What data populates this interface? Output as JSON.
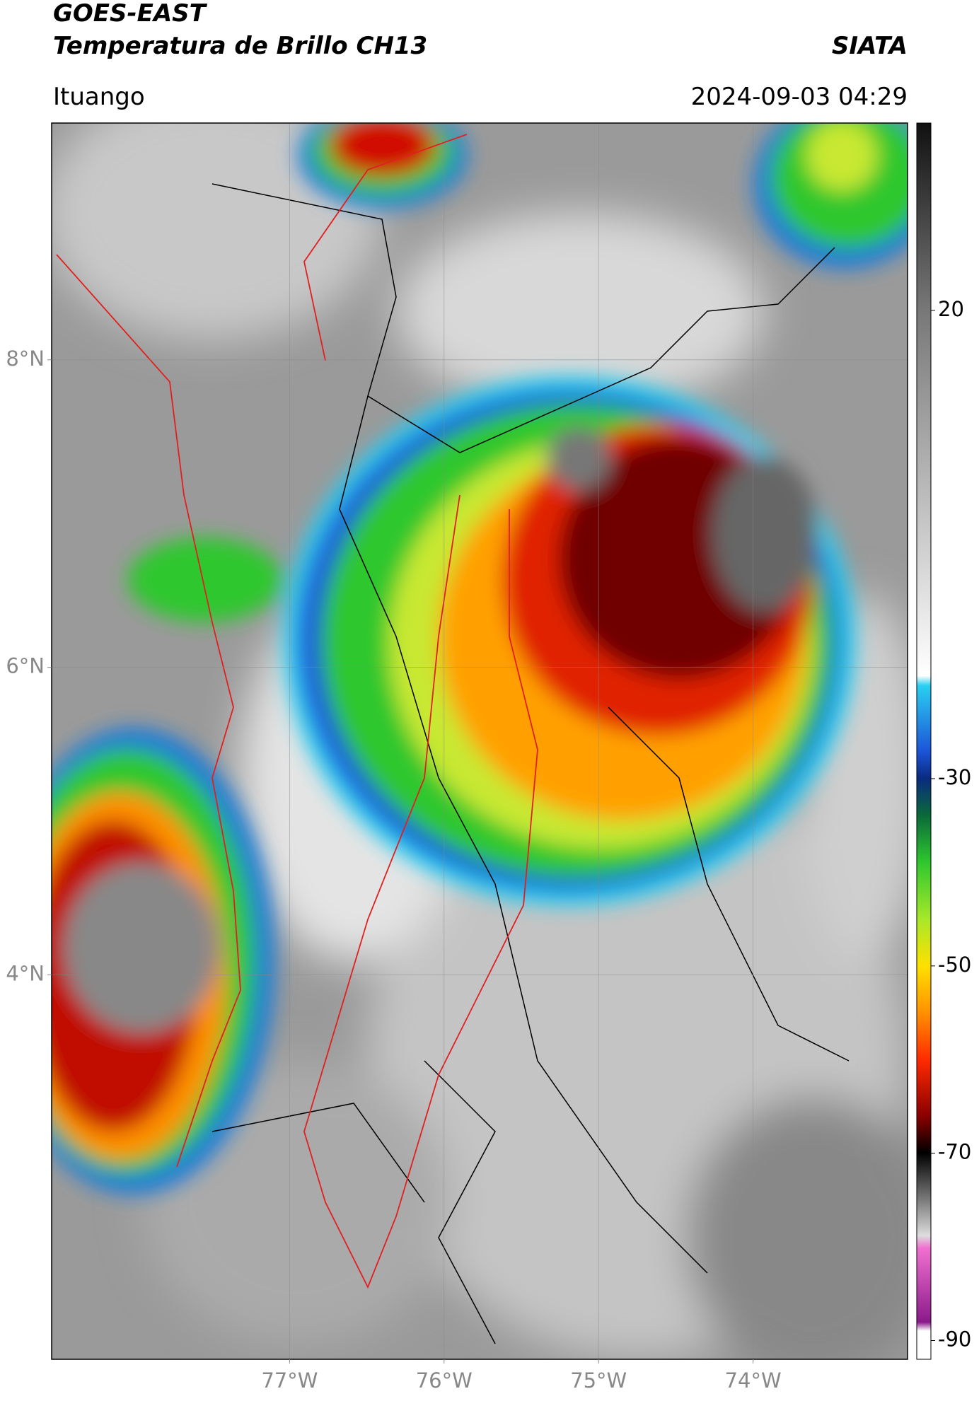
{
  "header": {
    "title": "GOES-EAST",
    "subtitle": "Temperatura de Brillo CH13",
    "source": "SIATA",
    "location": "Ituango",
    "datetime": "2024-09-03 04:29"
  },
  "map": {
    "xlim": [
      -78.54,
      -73.0
    ],
    "ylim": [
      1.5,
      9.54
    ],
    "xticks": [
      {
        "value": -77,
        "label": "77°W"
      },
      {
        "value": -76,
        "label": "76°W"
      },
      {
        "value": -75,
        "label": "75°W"
      },
      {
        "value": -74,
        "label": "74°W"
      }
    ],
    "yticks": [
      {
        "value": 8,
        "label": "8°N"
      },
      {
        "value": 6,
        "label": "6°N"
      },
      {
        "value": 4,
        "label": "4°N"
      }
    ],
    "grid": true
  },
  "colorbar": {
    "clim": [
      -92,
      40
    ],
    "ticks": [
      20,
      -30,
      -50,
      -70,
      -90
    ]
  }
}
